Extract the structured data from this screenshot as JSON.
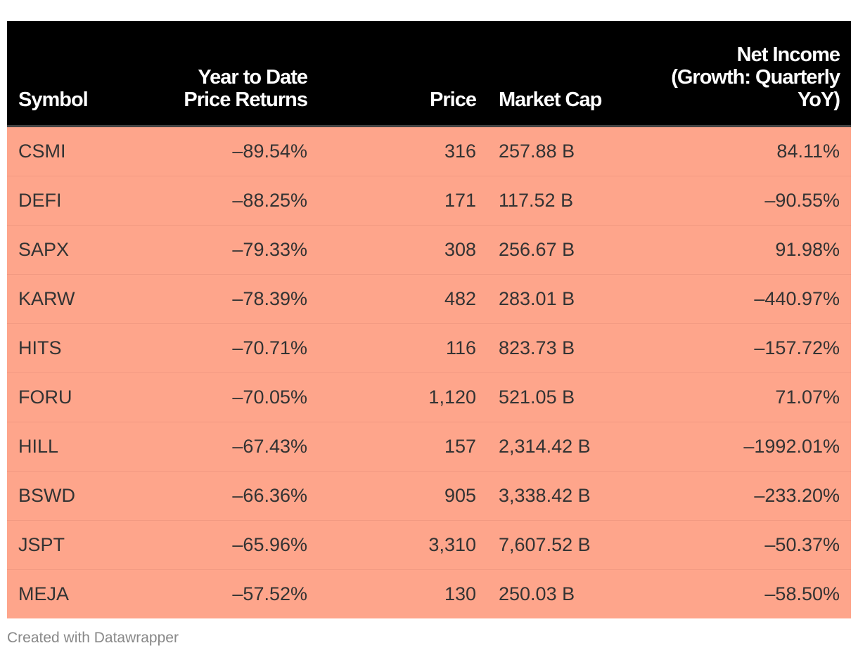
{
  "table": {
    "header": [
      "Symbol",
      "Year to Date Price Returns",
      "Price",
      "Market Cap",
      "Net Income (Growth: Quarterly YoY)"
    ],
    "rows": [
      [
        "CSMI",
        "–89.54%",
        "316",
        "257.88 B",
        "84.11%"
      ],
      [
        "DEFI",
        "–88.25%",
        "171",
        "117.52 B",
        "–90.55%"
      ],
      [
        "SAPX",
        "–79.33%",
        "308",
        "256.67 B",
        "91.98%"
      ],
      [
        "KARW",
        "–78.39%",
        "482",
        "283.01 B",
        "–440.97%"
      ],
      [
        "HITS",
        "–70.71%",
        "116",
        "823.73 B",
        "–157.72%"
      ],
      [
        "FORU",
        "–70.05%",
        "1,120",
        "521.05 B",
        "71.07%"
      ],
      [
        "HILL",
        "–67.43%",
        "157",
        "2,314.42 B",
        "–1992.01%"
      ],
      [
        "BSWD",
        "–66.36%",
        "905",
        "3,338.42 B",
        "–233.20%"
      ],
      [
        "JSPT",
        "–65.96%",
        "3,310",
        "7,607.52 B",
        "–50.37%"
      ],
      [
        "MEJA",
        "–57.52%",
        "130",
        "250.03 B",
        "–58.50%"
      ]
    ]
  },
  "footer": "Created with Datawrapper"
}
